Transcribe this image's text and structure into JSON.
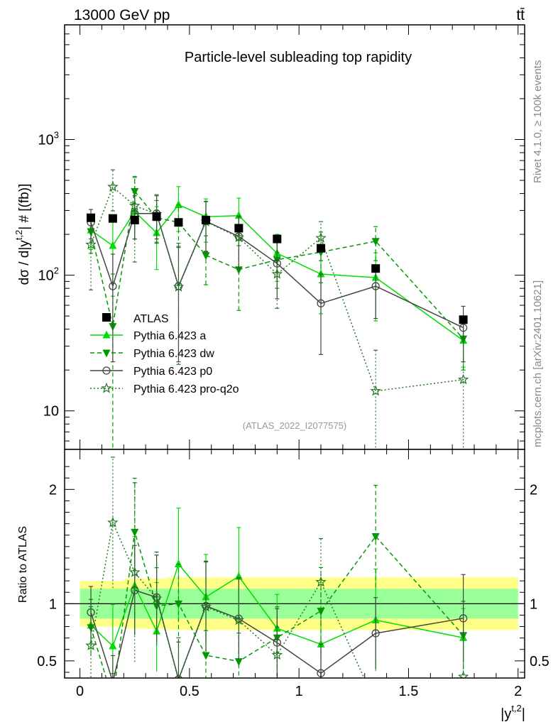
{
  "header": {
    "energy_label": "13000 GeV pp",
    "process_label": "tt̄",
    "title": "Particle-level subleading top rapidity",
    "watermark": "(ATLAS_2022_I2077575)",
    "side_label_top": "Rivet 4.1.0, ≥ 100k events",
    "side_label_bottom": "mcplots.cern.ch [arXiv:2401.10621]"
  },
  "axes": {
    "ylabel_main": "dσ / d|y^{t,2}| # [(fb)]",
    "ylabel_main_parts": {
      "a": "dσ / d|y",
      "sup": "t,2",
      "b": "| # [(fb)]"
    },
    "ylabel_ratio": "Ratio to ATLAS",
    "xlabel_parts": {
      "a": "|y",
      "sup": "t,2",
      "b": "|"
    },
    "main_ylim": [
      5.2,
      7000
    ],
    "main_yticks": [
      {
        "value": 10,
        "label": "10"
      },
      {
        "value": 100,
        "label": "10",
        "sup": "2"
      },
      {
        "value": 1000,
        "label": "10",
        "sup": "3"
      }
    ],
    "ratio_ylim": [
      0.35,
      2.35
    ],
    "ratio_yticks": [
      {
        "value": 0.5,
        "label": "0.5"
      },
      {
        "value": 1,
        "label": "1"
      },
      {
        "value": 2,
        "label": "2"
      }
    ],
    "xlim": [
      -0.07,
      2.03
    ],
    "xticks": [
      {
        "value": 0,
        "label": "0"
      },
      {
        "value": 0.5,
        "label": "0.5"
      },
      {
        "value": 1,
        "label": "1"
      },
      {
        "value": 1.5,
        "label": "1.5"
      },
      {
        "value": 2,
        "label": "2"
      }
    ]
  },
  "chart_data": {
    "type": "line",
    "log_y": true,
    "x_bins": [
      [
        0.0,
        0.1
      ],
      [
        0.1,
        0.2
      ],
      [
        0.2,
        0.3
      ],
      [
        0.3,
        0.4
      ],
      [
        0.4,
        0.5
      ],
      [
        0.5,
        0.65
      ],
      [
        0.65,
        0.8
      ],
      [
        0.8,
        1.0
      ],
      [
        1.0,
        1.2
      ],
      [
        1.2,
        1.5
      ],
      [
        1.5,
        2.0
      ]
    ],
    "x": [
      0.05,
      0.15,
      0.25,
      0.35,
      0.45,
      0.575,
      0.725,
      0.9,
      1.1,
      1.35,
      1.75
    ],
    "reference": {
      "name": "ATLAS",
      "values": [
        265,
        262,
        255,
        270,
        245,
        255,
        222,
        185,
        158,
        112,
        47
      ],
      "band_inner": [
        0.13,
        0.13,
        0.13,
        0.13,
        0.13,
        0.13,
        0.13,
        0.13,
        0.13,
        0.13,
        0.13
      ],
      "band_outer": [
        0.2,
        0.2,
        0.22,
        0.22,
        0.23,
        0.23,
        0.23,
        0.23,
        0.23,
        0.23,
        0.23
      ]
    },
    "series": [
      {
        "name": "Pythia 6.423 a",
        "style": "solid",
        "marker": "triangle-up",
        "color": "#00dd00",
        "values": [
          215,
          165,
          295,
          205,
          330,
          270,
          275,
          145,
          102,
          96,
          33
        ],
        "err_up": [
          60,
          95,
          110,
          115,
          120,
          95,
          95,
          55,
          50,
          50,
          12
        ],
        "err_down": [
          60,
          95,
          110,
          95,
          120,
          95,
          95,
          55,
          50,
          50,
          12
        ]
      },
      {
        "name": "Pythia 6.423 dw",
        "style": "dashed",
        "marker": "triangle-down",
        "color": "#009900",
        "values": [
          210,
          42,
          415,
          265,
          245,
          140,
          110,
          130,
          148,
          178,
          34
        ],
        "err_up": [
          65,
          60,
          120,
          90,
          85,
          55,
          55,
          50,
          60,
          50,
          14
        ],
        "err_down": [
          65,
          42,
          120,
          90,
          85,
          55,
          55,
          50,
          60,
          50,
          14
        ]
      },
      {
        "name": "Pythia 6.423 p0",
        "style": "solid",
        "marker": "circle-open",
        "color": "#444444",
        "values": [
          245,
          83,
          285,
          285,
          83,
          250,
          193,
          122,
          62,
          83,
          41
        ],
        "err_up": [
          60,
          60,
          100,
          100,
          80,
          100,
          80,
          55,
          40,
          35,
          18
        ],
        "err_down": [
          60,
          60,
          100,
          100,
          60,
          100,
          80,
          55,
          36,
          35,
          18
        ]
      },
      {
        "name": "Pythia 6.423 pro-q2o",
        "style": "dotted",
        "marker": "star",
        "color": "#227722",
        "values": [
          168,
          448,
          325,
          282,
          82,
          248,
          190,
          102,
          188,
          14,
          17
        ],
        "err_up": [
          90,
          150,
          200,
          110,
          90,
          100,
          80,
          45,
          60,
          14,
          17
        ],
        "err_down": [
          90,
          150,
          200,
          110,
          60,
          100,
          80,
          45,
          60,
          14,
          17
        ]
      }
    ],
    "ratio_ylim": [
      0.35,
      2.35
    ]
  }
}
